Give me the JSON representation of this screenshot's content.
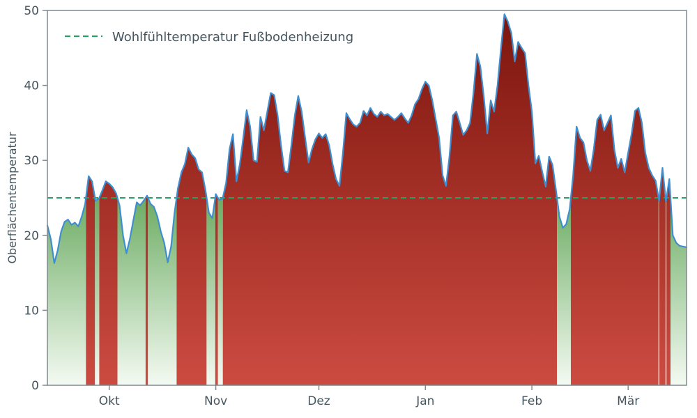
{
  "chart_data": {
    "type": "area",
    "title": "",
    "xlabel": "",
    "ylabel": "Oberflächentemperatur",
    "ylim": [
      0,
      50
    ],
    "yticks": [
      0,
      10,
      20,
      30,
      40,
      50
    ],
    "x_unit": "days",
    "x_range": [
      0,
      186
    ],
    "xticks": [
      {
        "day": 18,
        "label": "Okt"
      },
      {
        "day": 49,
        "label": "Nov"
      },
      {
        "day": 79,
        "label": "Dez"
      },
      {
        "day": 110,
        "label": "Jan"
      },
      {
        "day": 141,
        "label": "Feb"
      },
      {
        "day": 169,
        "label": "Mär"
      }
    ],
    "grid": false,
    "legend_position": "upper-left",
    "threshold": {
      "value": 25,
      "label": "Wohlfühltemperatur Fußbodenheizung",
      "color": "#28a063",
      "style": "dashed"
    },
    "series": [
      {
        "name": "Oberflächentemperatur",
        "values": [
          21.3,
          19.5,
          16.3,
          18.0,
          20.5,
          21.8,
          22.1,
          21.4,
          21.7,
          21.2,
          22.5,
          24.2,
          27.9,
          27.2,
          24.6,
          24.9,
          26.0,
          27.2,
          26.9,
          26.4,
          25.6,
          24.0,
          20.0,
          17.6,
          19.5,
          22.0,
          24.4,
          24.0,
          24.6,
          25.3,
          24.2,
          23.8,
          22.5,
          20.5,
          19.0,
          16.4,
          18.5,
          23.0,
          26.3,
          28.4,
          29.5,
          31.7,
          30.8,
          30.3,
          28.8,
          28.4,
          26.0,
          23.0,
          22.3,
          25.5,
          24.7,
          24.9,
          27.0,
          31.5,
          33.5,
          27.2,
          29.5,
          33.0,
          36.7,
          34.5,
          30.0,
          29.8,
          35.8,
          34.0,
          36.5,
          39.0,
          38.7,
          36.0,
          32.0,
          28.6,
          28.4,
          32.0,
          36.0,
          38.6,
          36.5,
          33.0,
          29.7,
          31.5,
          32.8,
          33.6,
          33.0,
          33.5,
          32.0,
          29.5,
          27.5,
          26.6,
          31.0,
          36.3,
          35.5,
          34.8,
          34.5,
          35.0,
          36.6,
          36.0,
          37.0,
          36.2,
          35.8,
          36.5,
          36.0,
          36.2,
          35.8,
          35.4,
          35.8,
          36.3,
          35.6,
          35.0,
          36.0,
          37.5,
          38.2,
          39.5,
          40.5,
          40.0,
          38.0,
          35.5,
          33.0,
          28.0,
          26.6,
          30.5,
          36.0,
          36.5,
          35.0,
          33.4,
          34.0,
          35.0,
          39.0,
          44.2,
          42.5,
          38.5,
          33.6,
          38.0,
          36.5,
          40.0,
          45.0,
          49.5,
          48.5,
          47.0,
          43.2,
          45.8,
          45.0,
          44.3,
          40.0,
          36.5,
          29.6,
          30.6,
          28.5,
          26.5,
          30.5,
          29.4,
          26.0,
          22.5,
          21.0,
          21.5,
          23.5,
          28.0,
          34.5,
          33.0,
          32.4,
          30.0,
          28.6,
          31.5,
          35.4,
          36.1,
          34.0,
          35.0,
          36.0,
          31.4,
          29.0,
          30.2,
          28.4,
          31.0,
          33.5,
          36.6,
          37.0,
          35.0,
          31.0,
          29.0,
          28.0,
          27.3,
          24.6,
          29.0,
          24.5,
          27.5,
          20.0,
          19.0,
          18.6,
          18.5,
          18.4
        ]
      }
    ],
    "colors": {
      "line": "#3e8ed0",
      "above_top": "#7c150d",
      "above_bottom": "#cc4b41",
      "below_top": "#6cac63",
      "below_bottom": "#f4faf2",
      "axis": "#7f8a90",
      "text": "#46565f"
    }
  },
  "legend": {
    "items": [
      {
        "label": "Wohlfühltemperatur Fußbodenheizung",
        "swatch": "dashed-green-line"
      }
    ]
  }
}
